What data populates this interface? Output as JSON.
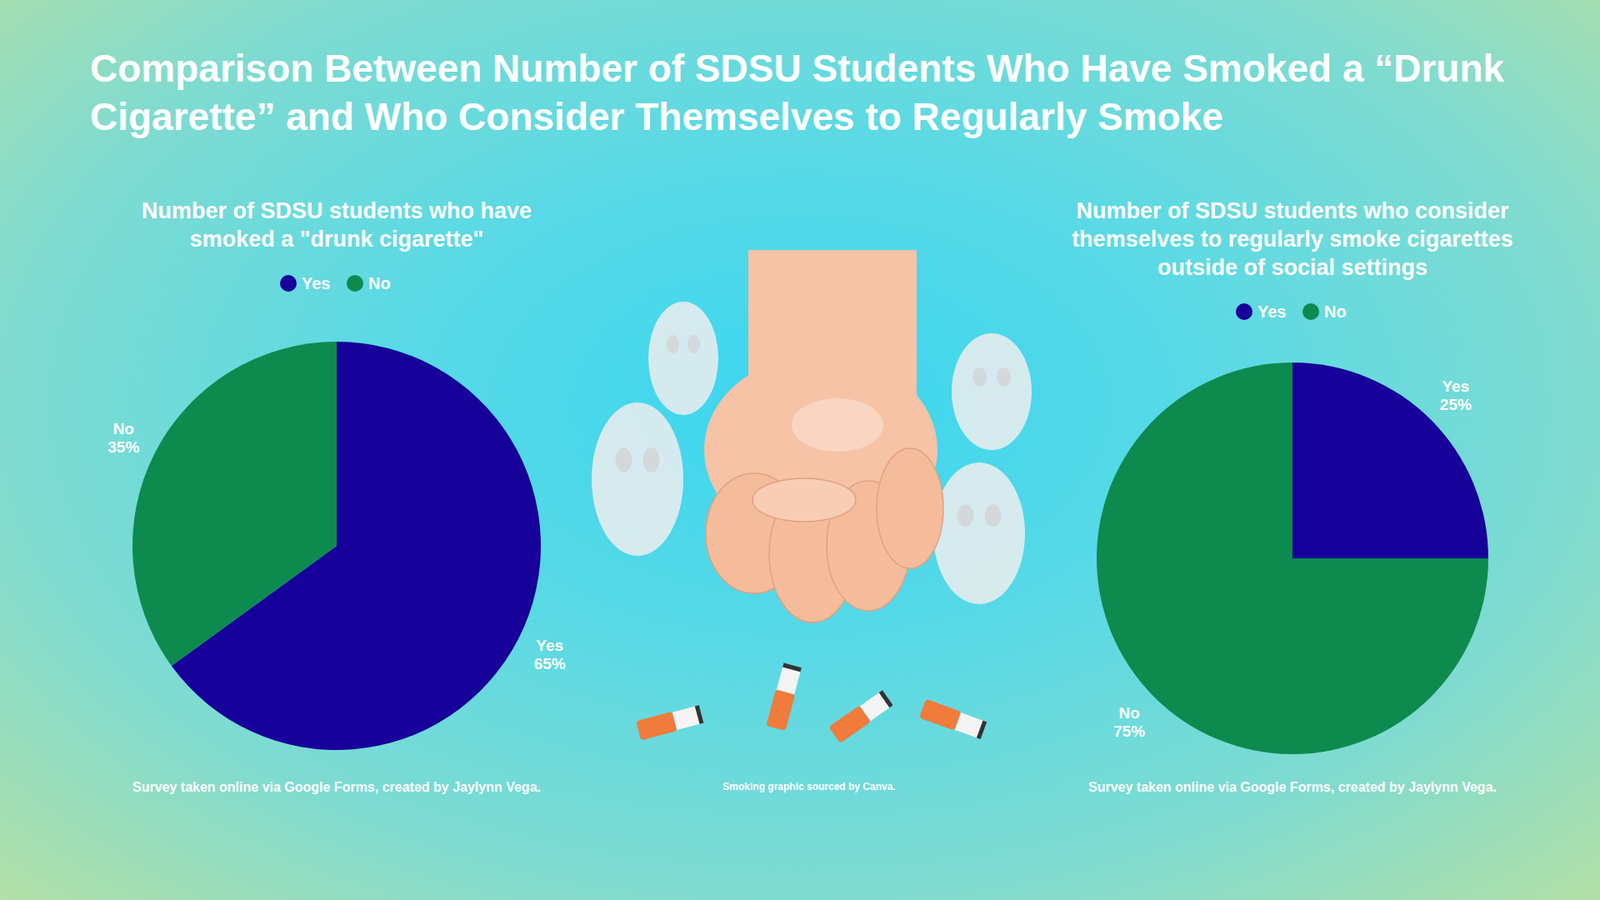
{
  "title": "Comparison Between Number of SDSU Students Who Have Smoked a “Drunk Cigarette” and Who Consider Themselves to Regularly Smoke",
  "graphic_credit": "Smoking graphic sourced by Canva.",
  "chart_data": [
    {
      "type": "pie",
      "title": "Number of SDSU students who have smoked a \"drunk cigarette\"",
      "categories": [
        "Yes",
        "No"
      ],
      "values": [
        65,
        35
      ],
      "value_labels": [
        "65%",
        "35%"
      ],
      "colors": [
        "#17009a",
        "#0d8a4e"
      ],
      "legend": "top",
      "data_labels": true,
      "source": "Survey taken online via Google Forms, created by Jaylynn Vega."
    },
    {
      "type": "pie",
      "title": "Number of SDSU students who consider themselves to regularly smoke cigarettes outside of social settings",
      "categories": [
        "Yes",
        "No"
      ],
      "values": [
        25,
        75
      ],
      "value_labels": [
        "25%",
        "75%"
      ],
      "colors": [
        "#17009a",
        "#0d8a4e"
      ],
      "legend": "top",
      "data_labels": true,
      "source": "Survey taken online via Google Forms, created by Jaylynn Vega."
    }
  ]
}
